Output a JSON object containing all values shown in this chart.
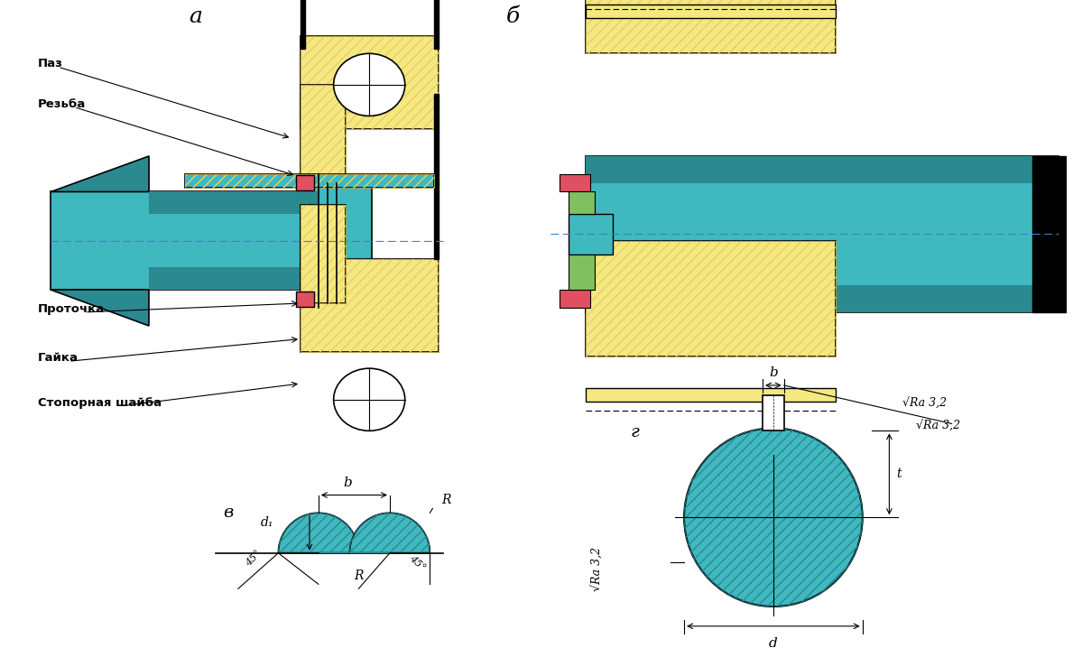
{
  "bg_color": "#ffffff",
  "teal_color": "#40B8C0",
  "teal_dark": "#2A8A90",
  "teal_darker": "#1A5A60",
  "yellow_fill": "#F5E882",
  "yellow_hatch": "#E8D060",
  "black": "#000000",
  "red_fill": "#E05060",
  "green_fill": "#80C060",
  "dashed_color": "#4080C0",
  "label_a": "a",
  "label_b": "б",
  "label_v": "в",
  "label_g": "г",
  "text_paz": "Паз",
  "text_rez": "Резьба",
  "text_prot": "Проточка",
  "text_gaika": "Гайка",
  "text_stop": "Стопорная шайба",
  "hatch_pattern": "///",
  "dim_b": "b",
  "dim_R": "R",
  "dim_d1": "d₁",
  "dim_45": "45°",
  "dim_d": "d",
  "dim_t": "t",
  "dim_Ra": "√Ra 3,2"
}
